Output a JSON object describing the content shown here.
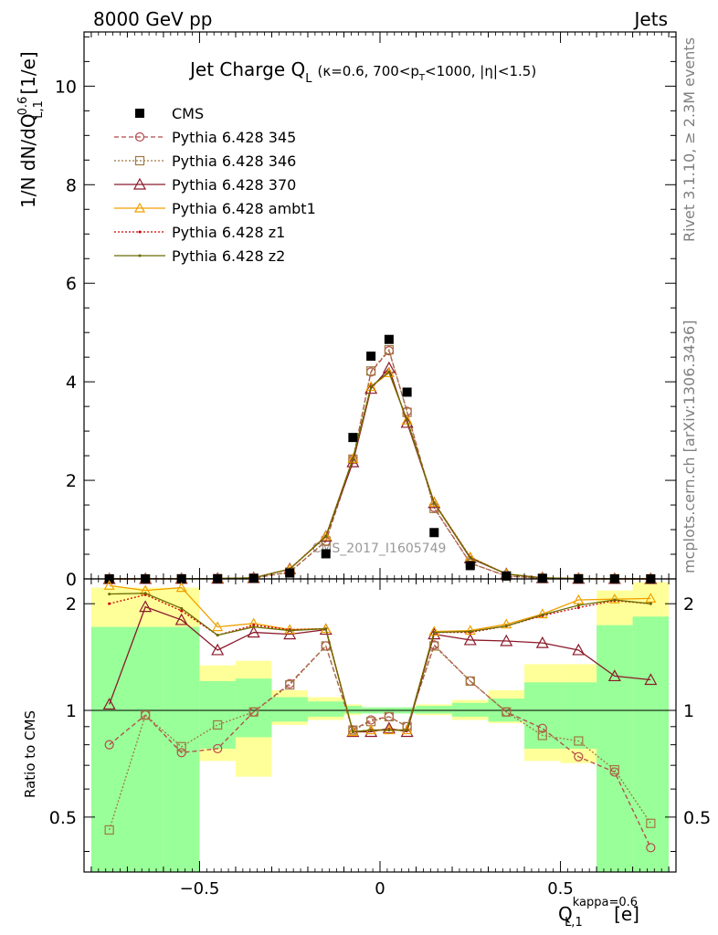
{
  "header": {
    "left": "8000 GeV pp",
    "right": "Jets"
  },
  "side_labels": {
    "rivet": "Rivet 3.1.10, ≥ 2.3M events",
    "mcplots": "mcplots.cern.ch [arXiv:1306.3436]"
  },
  "watermark": "CMS_2017_I1605749",
  "chart_data": [
    {
      "type": "line",
      "title": "Jet Charge Q",
      "title_sub": "L",
      "subtitle_parts": [
        "(κ=0.6, 700<p",
        "T",
        "<1000, |η|<1.5)"
      ],
      "ylabel_parts": [
        "1/N dN/dQ",
        "0.6",
        "L,1",
        " [1/e]"
      ],
      "xlim": [
        -0.82,
        0.82
      ],
      "ylim": [
        0,
        11.1
      ],
      "yticks": [
        "0",
        "2",
        "4",
        "6",
        "8",
        "10"
      ],
      "grid": false,
      "legend_position": "top-left",
      "x": [
        -0.75,
        -0.65,
        -0.55,
        -0.45,
        -0.35,
        -0.25,
        -0.15,
        -0.075,
        -0.025,
        0.025,
        0.075,
        0.15,
        0.25,
        0.35,
        0.45,
        0.55,
        0.65,
        0.75
      ],
      "series": [
        {
          "name": "CMS",
          "color": "#000000",
          "marker": "filled-square",
          "line": "none",
          "values": [
            0.0004,
            0.0009,
            0.0018,
            0.004,
            0.012,
            0.12,
            0.51,
            2.87,
            4.52,
            4.86,
            3.79,
            0.94,
            0.27,
            0.06,
            0.012,
            0.003,
            0.001,
            0.0005
          ]
        },
        {
          "name": "Pythia 6.428 345",
          "color": "#b5494a",
          "marker": "open-circle",
          "line": "dashed",
          "values": [
            0.0003,
            0.0009,
            0.0014,
            0.003,
            0.012,
            0.14,
            0.76,
            2.42,
            4.2,
            4.63,
            3.4,
            1.45,
            0.32,
            0.06,
            0.011,
            0.002,
            0.0007,
            0.0002
          ]
        },
        {
          "name": "Pythia 6.428 346",
          "color": "#a07840",
          "marker": "open-square",
          "line": "dotted",
          "values": [
            0.0002,
            0.0009,
            0.0014,
            0.0036,
            0.012,
            0.14,
            0.77,
            2.43,
            4.22,
            4.65,
            3.38,
            1.43,
            0.32,
            0.06,
            0.01,
            0.0025,
            0.0007,
            0.0002
          ]
        },
        {
          "name": "Pythia 6.428 370",
          "color": "#8b1a2b",
          "marker": "open-triangle",
          "line": "solid",
          "values": [
            0.0004,
            0.0018,
            0.0033,
            0.006,
            0.02,
            0.2,
            0.86,
            2.37,
            3.86,
            4.28,
            3.17,
            1.54,
            0.42,
            0.1,
            0.019,
            0.0045,
            0.0013,
            0.0006
          ]
        },
        {
          "name": "Pythia 6.428 ambt1",
          "color": "#f0a000",
          "marker": "open-triangle-small",
          "line": "solid",
          "values": [
            0.0009,
            0.0019,
            0.0039,
            0.007,
            0.022,
            0.2,
            0.87,
            2.44,
            3.9,
            4.18,
            3.22,
            1.55,
            0.44,
            0.1,
            0.022,
            0.006,
            0.0021,
            0.001
          ]
        },
        {
          "name": "Pythia 6.428 z1",
          "color": "#cc0000",
          "marker": "dot",
          "line": "dotted",
          "values": [
            0.0009,
            0.0019,
            0.0035,
            0.007,
            0.021,
            0.2,
            0.87,
            2.44,
            3.9,
            4.2,
            3.22,
            1.55,
            0.44,
            0.1,
            0.022,
            0.006,
            0.0021,
            0.001
          ]
        },
        {
          "name": "Pythia 6.428 z2",
          "color": "#6b6b00",
          "marker": "dot",
          "line": "solid",
          "values": [
            0.0009,
            0.0019,
            0.0035,
            0.0068,
            0.021,
            0.2,
            0.86,
            2.44,
            3.9,
            4.2,
            3.22,
            1.54,
            0.43,
            0.1,
            0.021,
            0.006,
            0.002,
            0.001
          ]
        }
      ]
    },
    {
      "type": "line",
      "ylabel": "Ratio to CMS",
      "xlabel_parts": [
        "Q",
        "kappa=0.6",
        "L,1",
        " [e]"
      ],
      "xlim": [
        -0.82,
        0.82
      ],
      "ylim": [
        0.35,
        2.35
      ],
      "yscale": "log",
      "xticks": [
        -0.5,
        0,
        0.5
      ],
      "xtick_labels": [
        "−0.5",
        "0",
        "0.5"
      ],
      "yticks": [
        0.5,
        1,
        2
      ],
      "ytick_labels": [
        "0.5",
        "1",
        "2"
      ],
      "reference_line": 1,
      "band_edges": [
        -0.8,
        -0.6,
        -0.5,
        -0.4,
        -0.3,
        -0.2,
        -0.1,
        -0.05,
        0,
        0.05,
        0.1,
        0.2,
        0.3,
        0.4,
        0.5,
        0.6,
        0.7,
        0.8
      ],
      "band_green": [
        [
          0.35,
          1.72
        ],
        [
          0.35,
          1.72
        ],
        [
          0.78,
          1.21
        ],
        [
          0.84,
          1.23
        ],
        [
          0.93,
          1.09
        ],
        [
          0.96,
          1.06
        ],
        [
          0.98,
          1.03
        ],
        [
          0.98,
          1.02
        ],
        [
          0.98,
          1.02
        ],
        [
          0.98,
          1.02
        ],
        [
          0.98,
          1.03
        ],
        [
          0.96,
          1.05
        ],
        [
          0.93,
          1.08
        ],
        [
          0.78,
          1.2
        ],
        [
          0.78,
          1.2
        ],
        [
          0.35,
          1.74
        ],
        [
          0.35,
          1.84
        ]
      ],
      "band_yellow": [
        [
          0.35,
          2.22
        ],
        [
          0.35,
          2.22
        ],
        [
          0.72,
          1.34
        ],
        [
          0.65,
          1.38
        ],
        [
          0.91,
          1.14
        ],
        [
          0.94,
          1.09
        ],
        [
          0.97,
          1.04
        ],
        [
          0.98,
          1.02
        ],
        [
          0.98,
          1.02
        ],
        [
          0.98,
          1.02
        ],
        [
          0.97,
          1.04
        ],
        [
          0.94,
          1.07
        ],
        [
          0.92,
          1.14
        ],
        [
          0.72,
          1.35
        ],
        [
          0.71,
          1.35
        ],
        [
          0.35,
          2.18
        ],
        [
          0.35,
          2.3
        ]
      ],
      "x": [
        -0.75,
        -0.65,
        -0.55,
        -0.45,
        -0.35,
        -0.25,
        -0.15,
        -0.075,
        -0.025,
        0.025,
        0.075,
        0.15,
        0.25,
        0.35,
        0.45,
        0.55,
        0.65,
        0.75
      ],
      "series": [
        {
          "name": "Pythia 6.428 345",
          "values": [
            0.8,
            0.97,
            0.76,
            0.78,
            0.99,
            1.19,
            1.52,
            0.88,
            0.94,
            0.96,
            0.9,
            1.53,
            1.21,
            0.99,
            0.89,
            0.74,
            0.67,
            0.41
          ]
        },
        {
          "name": "Pythia 6.428 346",
          "values": [
            0.46,
            0.97,
            0.79,
            0.91,
            0.99,
            1.18,
            1.52,
            0.88,
            0.93,
            0.96,
            0.9,
            1.52,
            1.21,
            0.99,
            0.85,
            0.82,
            0.68,
            0.48
          ]
        },
        {
          "name": "Pythia 6.428 370",
          "values": [
            1.04,
            1.96,
            1.8,
            1.48,
            1.66,
            1.64,
            1.69,
            0.87,
            0.87,
            0.89,
            0.87,
            1.64,
            1.58,
            1.57,
            1.55,
            1.48,
            1.25,
            1.22
          ]
        },
        {
          "name": "Pythia 6.428 ambt1",
          "values": [
            2.25,
            2.18,
            2.22,
            1.72,
            1.76,
            1.69,
            1.7,
            0.87,
            0.88,
            0.88,
            0.88,
            1.67,
            1.68,
            1.75,
            1.87,
            2.05,
            2.06,
            2.07
          ]
        },
        {
          "name": "Pythia 6.428 z1",
          "values": [
            2.0,
            2.12,
            1.91,
            1.63,
            1.74,
            1.69,
            1.7,
            0.87,
            0.88,
            0.88,
            0.88,
            1.66,
            1.66,
            1.73,
            1.85,
            1.95,
            2.04,
            2.0
          ]
        },
        {
          "name": "Pythia 6.428 z2",
          "values": [
            2.13,
            2.14,
            1.94,
            1.63,
            1.72,
            1.68,
            1.7,
            0.87,
            0.88,
            0.88,
            0.88,
            1.66,
            1.67,
            1.73,
            1.86,
            1.98,
            2.05,
            2.0
          ]
        }
      ]
    }
  ]
}
